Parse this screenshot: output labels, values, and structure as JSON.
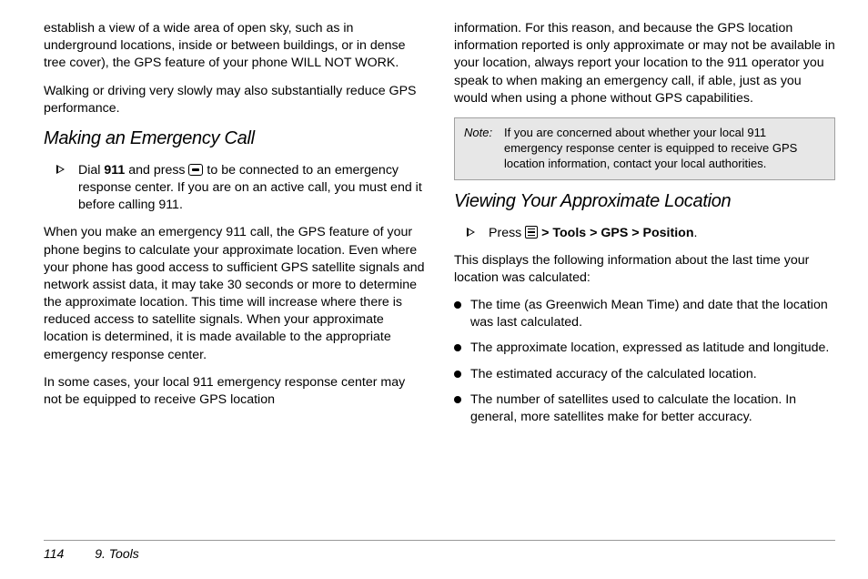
{
  "left": {
    "p1": "establish a view of a wide area of open sky, such as in underground locations, inside or between buildings, or in dense tree cover), the GPS feature of your phone WILL NOT WORK.",
    "p2": "Walking or driving very slowly may also substantially reduce GPS performance.",
    "h1": "Making an Emergency Call",
    "step1_a": "Dial ",
    "step1_b": "911",
    "step1_c": " and press ",
    "step1_d": " to be connected to an emergency response center. If you are on an active call, you must end it before calling 911.",
    "p3": "When you make an emergency 911 call, the GPS feature of your phone begins to calculate your approximate location. Even where your phone has good access to sufficient GPS satellite signals and network assist data, it may take 30 seconds or more to determine the approximate location. This time will increase where there is reduced access to satellite signals. When your approximate location is determined, it is made available to the appropriate emergency response center.",
    "p4": "In some cases, your local 911 emergency response center may not be equipped to receive GPS location"
  },
  "right": {
    "p1": "information. For this reason, and because the GPS location information reported is only approximate or may not be available in your location, always report your location to the 911 operator you speak to when making an emergency call, if able, just as you would when using a phone without GPS capabilities.",
    "note_label": "Note:",
    "note_body": "If you are concerned about whether your local 911 emergency response center is equipped to receive GPS location information, contact your local authorities.",
    "h2": "Viewing Your Approximate Location",
    "step_press": "Press ",
    "step_path_tools": "Tools",
    "step_path_gps": "GPS",
    "step_path_position": "Position",
    "p2": "This displays the following information about the last time your location was calculated:",
    "bullets": [
      "The time (as Greenwich Mean Time) and date that the location was last calculated.",
      "The approximate location, expressed as latitude and longitude.",
      "The estimated accuracy of the calculated location.",
      "The number of satellites used to calculate the location. In general, more satellites make for better accuracy."
    ]
  },
  "footer": {
    "page": "114",
    "section": "9. Tools"
  }
}
